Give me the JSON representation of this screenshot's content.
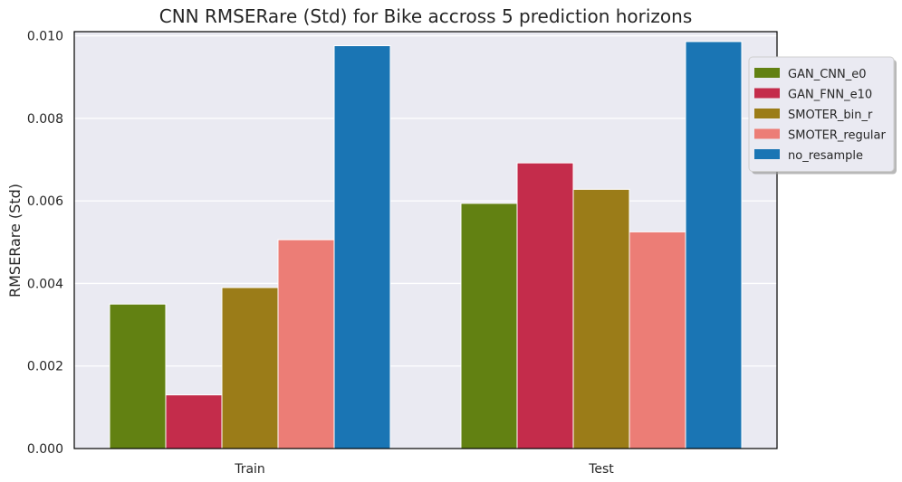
{
  "chart_data": {
    "type": "bar",
    "title": "CNN RMSERare (Std) for Bike accross 5 prediction horizons",
    "xlabel": "",
    "ylabel": "RMSERare (Std)",
    "categories": [
      "Train",
      "Test"
    ],
    "ylim": [
      0,
      0.0101
    ],
    "yticks": [
      "0.000",
      "0.002",
      "0.004",
      "0.006",
      "0.008",
      "0.010"
    ],
    "ytick_values": [
      0,
      0.002,
      0.004,
      0.006,
      0.008,
      0.01
    ],
    "grid": true,
    "legend_position": "upper-right-outside",
    "series": [
      {
        "name": "GAN_CNN_e0",
        "color": "#628112",
        "values": [
          0.0035,
          0.00594
        ]
      },
      {
        "name": "GAN_FNN_e10",
        "color": "#c42c4b",
        "values": [
          0.0013,
          0.00692
        ]
      },
      {
        "name": "SMOTER_bin_r",
        "color": "#9b7c18",
        "values": [
          0.0039,
          0.00628
        ]
      },
      {
        "name": "SMOTER_regular",
        "color": "#ec7d76",
        "values": [
          0.00506,
          0.00525
        ]
      },
      {
        "name": "no_resample",
        "color": "#1a75b4",
        "values": [
          0.00976,
          0.00986
        ]
      }
    ],
    "background_color": "#eaeaf2"
  }
}
